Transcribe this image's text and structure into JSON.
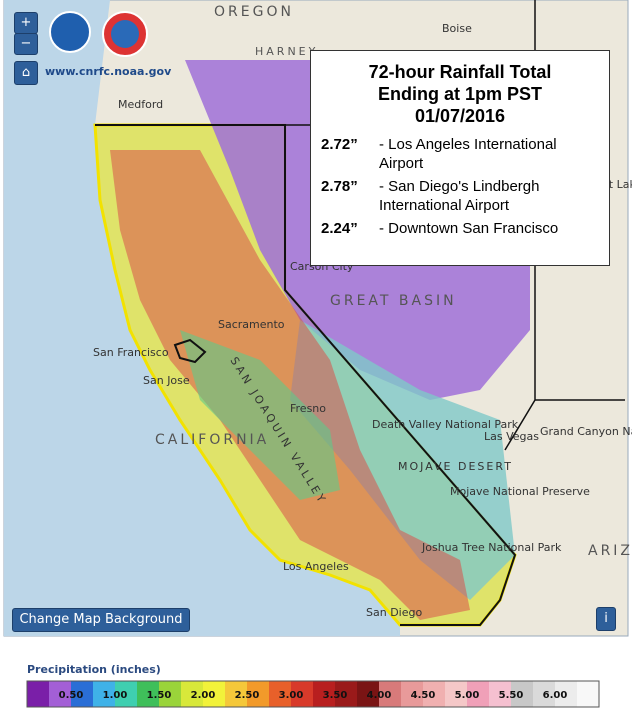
{
  "map": {
    "site": "www.cnrfc.noaa.gov",
    "controls": {
      "zoom_in": "+",
      "zoom_out": "−",
      "background_button": "Change Map Background",
      "info": "i"
    },
    "labels": {
      "oregon": "OREGON",
      "boise": "Boise",
      "harney": "HARNEY",
      "medford": "Medford",
      "salt_lake": "Salt Lake City",
      "carson": "Carson City",
      "sacramento": "Sacramento",
      "san_francisco": "San Francisco",
      "san_jose": "San Jose",
      "california": "CALIFORNIA",
      "valley": "SAN JOAQUIN VALLEY",
      "fresno": "Fresno",
      "great_basin": "GREAT BASIN",
      "las_vegas": "Las Vegas",
      "grand_canyon": "Grand Canyon National Park",
      "death_valley": "Death Valley National Park",
      "mojave": "MOJAVE DESERT",
      "mojave_preserve": "Mojave National Preserve",
      "joshua_tree": "Joshua Tree National Park",
      "los_angeles": "Los Angeles",
      "san_diego": "San Diego",
      "arizona": "ARIZONA"
    }
  },
  "info_box": {
    "title": [
      "72-hour Rainfall Total",
      "Ending at 1pm PST",
      "01/07/2016"
    ],
    "items": [
      {
        "value": "2.72”",
        "text": "- Los Angeles International Airport"
      },
      {
        "value": "2.78”",
        "text": "- San Diego's Lindbergh International Airport"
      },
      {
        "value": "2.24”",
        "text": "- Downtown San Francisco"
      }
    ]
  },
  "legend": {
    "title": "Precipitation (inches)",
    "ticks": [
      "0.50",
      "1.00",
      "1.50",
      "2.00",
      "2.50",
      "3.00",
      "3.50",
      "4.00",
      "4.50",
      "5.00",
      "5.50",
      "6.00"
    ]
  }
}
